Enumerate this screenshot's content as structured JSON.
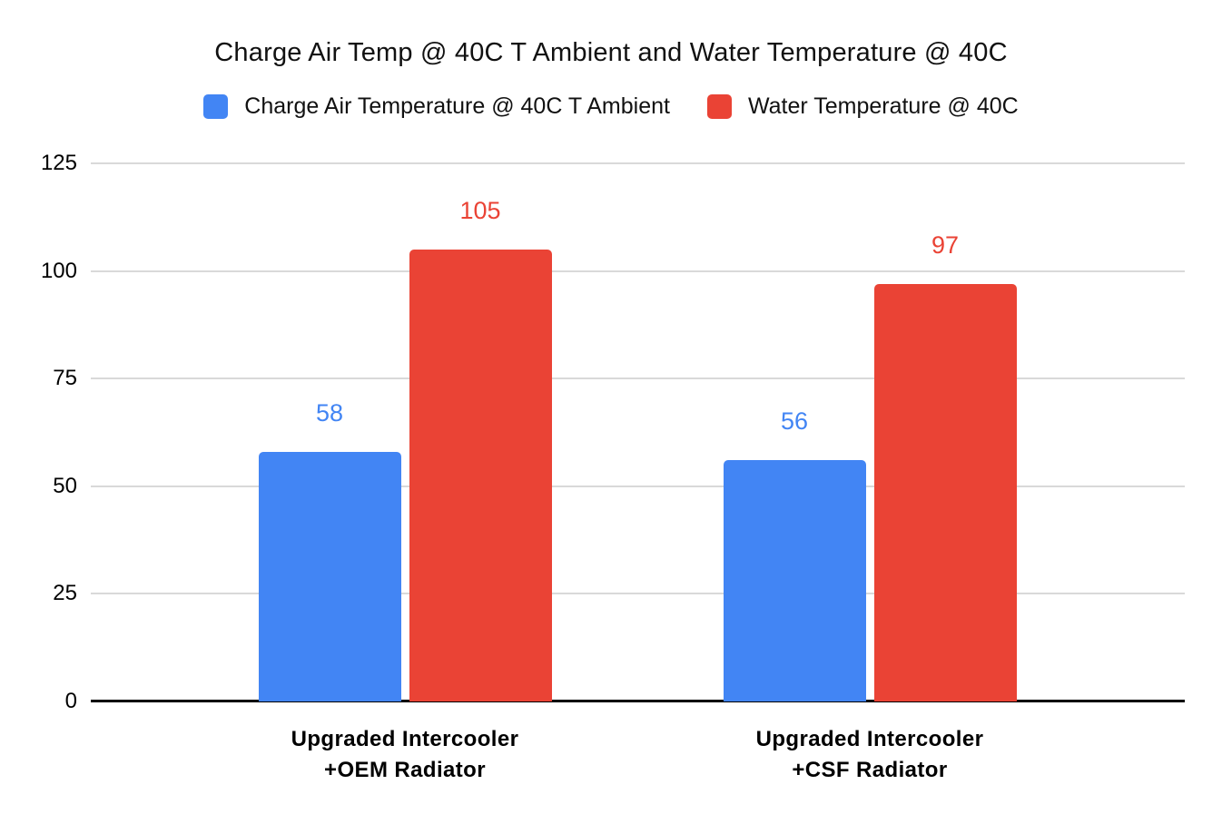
{
  "chart_data": {
    "type": "bar",
    "title": "Charge Air Temp @ 40C T Ambient and Water Temperature @ 40C",
    "categories": [
      "Upgraded Intercooler\n+OEM Radiator",
      "Upgraded Intercooler\n+CSF Radiator"
    ],
    "series": [
      {
        "name": "Charge Air Temperature @ 40C T Ambient",
        "color": "#4285F4",
        "values": [
          58,
          56
        ]
      },
      {
        "name": "Water Temperature @ 40C",
        "color": "#EA4335",
        "values": [
          105,
          97
        ]
      }
    ],
    "ylim": [
      0,
      125
    ],
    "yticks": [
      0,
      25,
      50,
      75,
      100,
      125
    ],
    "grid": true,
    "legend_position": "top",
    "xlabel": "",
    "ylabel": "",
    "data_labels": true,
    "colors": {
      "background": "#ffffff",
      "gridline": "#d9d9d9",
      "axis": "#000000",
      "text": "#111111"
    }
  }
}
